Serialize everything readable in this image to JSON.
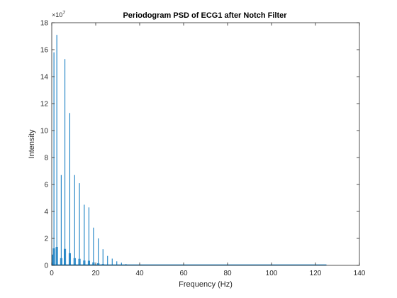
{
  "chart_data": {
    "type": "line",
    "title": "Periodogram PSD of ECG1 after Notch Filter",
    "xlabel": "Frequency (Hz)",
    "ylabel": "Intensity",
    "xlim": [
      0,
      140
    ],
    "ylim": [
      0,
      18
    ],
    "x_ticks": [
      0,
      20,
      40,
      60,
      80,
      100,
      120,
      140
    ],
    "y_ticks": [
      0,
      2,
      4,
      6,
      8,
      10,
      12,
      14,
      16,
      18
    ],
    "y_exponent_base": "×10",
    "y_exponent_power": "7",
    "x_max_data": 125,
    "series": [
      {
        "color": "#0072bd",
        "peaks": [
          {
            "x": 0.3,
            "y": 0.8
          },
          {
            "x": 1.0,
            "y": 15.8
          },
          {
            "x": 2.3,
            "y": 17.1
          },
          {
            "x": 4.3,
            "y": 6.7
          },
          {
            "x": 6.0,
            "y": 15.3
          },
          {
            "x": 8.2,
            "y": 11.3
          },
          {
            "x": 10.4,
            "y": 6.7
          },
          {
            "x": 12.6,
            "y": 6.1
          },
          {
            "x": 14.8,
            "y": 4.5
          },
          {
            "x": 16.9,
            "y": 4.3
          },
          {
            "x": 19.0,
            "y": 2.8
          },
          {
            "x": 21.2,
            "y": 2.0
          },
          {
            "x": 23.3,
            "y": 1.2
          },
          {
            "x": 25.4,
            "y": 0.7
          },
          {
            "x": 27.5,
            "y": 0.5
          },
          {
            "x": 29.6,
            "y": 0.3
          },
          {
            "x": 31.7,
            "y": 0.2
          },
          {
            "x": 33.8,
            "y": 0.1
          }
        ]
      }
    ],
    "grid": false,
    "box": true
  }
}
